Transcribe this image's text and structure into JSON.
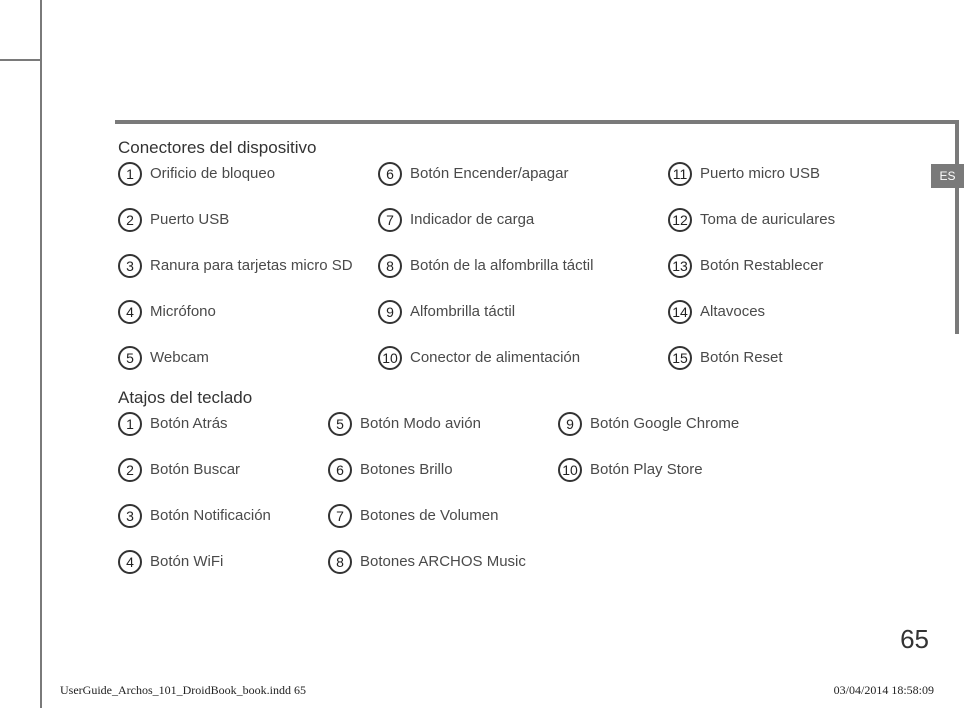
{
  "lang_tab": "ES",
  "page_number": "65",
  "footer_left": "UserGuide_Archos_101_DroidBook_book.indd   65",
  "footer_right": "03/04/2014   18:58:09",
  "section1_title": "Conectores del dispositivo",
  "section2_title": "Atajos del teclado",
  "conn": {
    "i1": "Orificio de bloqueo",
    "i2": "Puerto USB",
    "i3": "Ranura para tarjetas micro SD",
    "i4": "Micrófono",
    "i5": "Webcam",
    "i6": "Botón Encender/apagar",
    "i7": "Indicador de carga",
    "i8": "Botón de la alfombrilla táctil",
    "i9": "Alfombrilla táctil",
    "i10": "Conector de alimentación",
    "i11": "Puerto micro USB",
    "i12": "Toma de auriculares",
    "i13": "Botón Restablecer",
    "i14": "Altavoces",
    "i15": "Botón Reset"
  },
  "short": {
    "s1": "Botón Atrás",
    "s2": "Botón Buscar",
    "s3": "Botón Notificación",
    "s4": "Botón WiFi",
    "s5": "Botón Modo avión",
    "s6": "Botones Brillo",
    "s7": "Botones de Volumen",
    "s8": "Botones ARCHOS Music",
    "s9": "Botón Google Chrome",
    "s10": "Botón Play Store"
  },
  "nums": {
    "n1": "1",
    "n2": "2",
    "n3": "3",
    "n4": "4",
    "n5": "5",
    "n6": "6",
    "n7": "7",
    "n8": "8",
    "n9": "9",
    "n10": "10",
    "n11": "11",
    "n12": "12",
    "n13": "13",
    "n14": "14",
    "n15": "15"
  }
}
